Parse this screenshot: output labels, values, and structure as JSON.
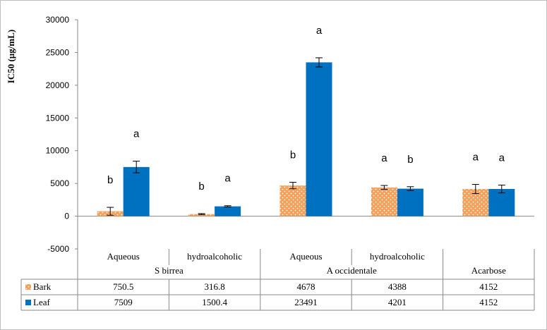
{
  "chart_data": {
    "type": "bar",
    "ylabel": "IC50 (µg/mL)",
    "ylim": [
      -5000,
      30000
    ],
    "yticks": [
      -5000,
      0,
      5000,
      10000,
      15000,
      20000,
      25000,
      30000
    ],
    "grid": false,
    "legend_position": "table-left",
    "groups": [
      {
        "name": "S birrea",
        "subcategories": [
          "Aqueous",
          "hydroalcoholic"
        ]
      },
      {
        "name": "A occidentale",
        "subcategories": [
          "Aqueous",
          "hydroalcoholic"
        ]
      },
      {
        "name": "",
        "subcategories": [
          "Acarbose"
        ]
      }
    ],
    "categories": [
      "Aqueous",
      "hydroalcoholic",
      "Aqueous",
      "hydroalcoholic",
      "Acarbose"
    ],
    "series": [
      {
        "name": "Bark",
        "color": "#F5A05A",
        "pattern": "dotted-orange",
        "values": [
          750.5,
          316.8,
          4678,
          4388,
          4152
        ],
        "value_labels": [
          "750.5",
          "316.8",
          "4678",
          "4388",
          "4152"
        ],
        "errors": [
          600,
          80,
          500,
          300,
          700
        ],
        "significance": [
          "b",
          "b",
          "b",
          "a",
          "a"
        ]
      },
      {
        "name": "Leaf",
        "color": "#0070C0",
        "values": [
          7509,
          1500.4,
          23491,
          4201,
          4152
        ],
        "value_labels": [
          "7509",
          "1500.4",
          "23491",
          "4201",
          "4152"
        ],
        "errors": [
          900,
          100,
          700,
          300,
          600
        ],
        "significance": [
          "a",
          "a",
          "a",
          "b",
          "a"
        ]
      }
    ]
  }
}
